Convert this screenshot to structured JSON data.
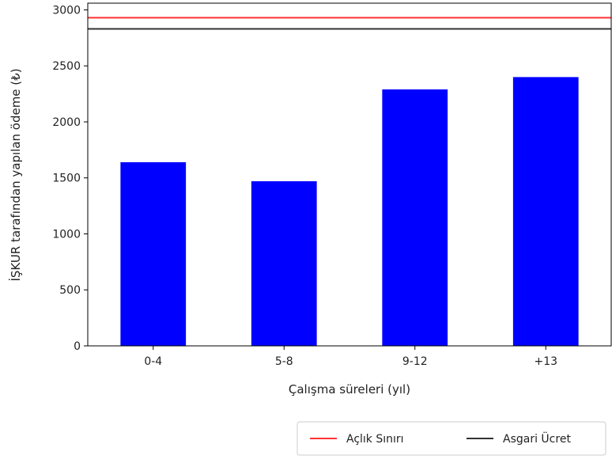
{
  "chart_data": {
    "type": "bar",
    "title": "",
    "xlabel": "Çalışma süreleri (yıl)",
    "ylabel": "İŞKUR tarafından yapılan ödeme (₺)",
    "categories": [
      "0-4",
      "5-8",
      "9-12",
      "+13"
    ],
    "values": [
      1640,
      1470,
      2290,
      2400
    ],
    "ylim": [
      0,
      3060
    ],
    "yticks": [
      0,
      500,
      1000,
      1500,
      2000,
      2500,
      3000
    ],
    "bar_color": "#0000ff",
    "reference_lines": [
      {
        "name": "Açlık Sınırı",
        "value": 2930,
        "color": "#ff3333"
      },
      {
        "name": "Asgari Ücret",
        "value": 2830,
        "color": "#333333"
      }
    ],
    "grid": false,
    "legend_position": "bottom-right, outside plot"
  }
}
